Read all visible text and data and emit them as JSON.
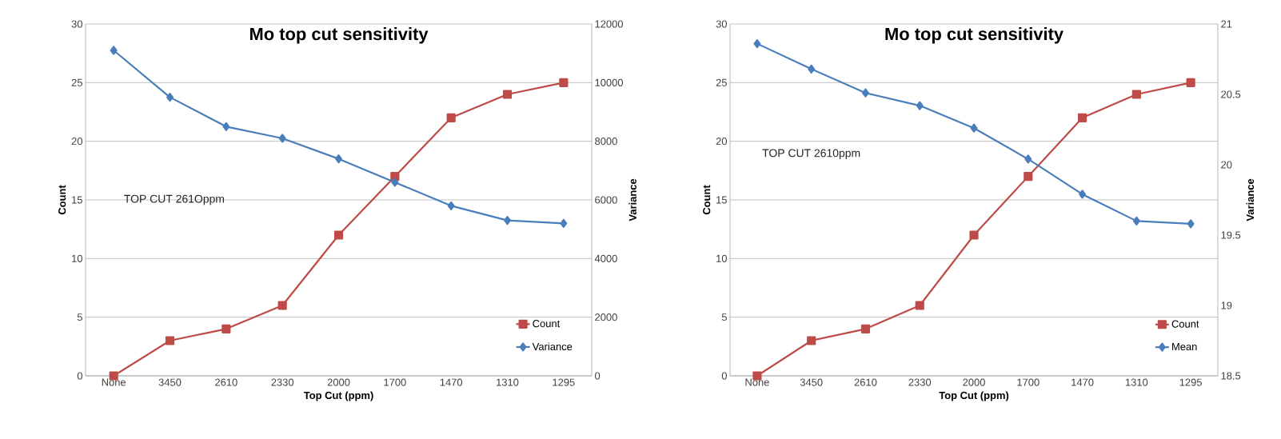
{
  "chart_data": [
    {
      "type": "line",
      "title": "Mo top cut sensitivity",
      "xlabel": "Top Cut (ppm)",
      "ylabel": "Count",
      "y2label": "Variance",
      "categories": [
        "None",
        "3450",
        "2610",
        "2330",
        "2000",
        "1700",
        "1470",
        "1310",
        "1295"
      ],
      "series": [
        {
          "name": "Count",
          "color": "#be4b48",
          "marker": "square",
          "values": [
            0,
            3,
            4,
            6,
            12,
            17,
            22,
            24,
            25
          ]
        },
        {
          "name": "Variance",
          "color": "#4a7ebb",
          "marker": "diamond",
          "axis": "y2",
          "values": [
            11100,
            9500,
            8500,
            8100,
            7400,
            6600,
            5800,
            5300,
            5200
          ]
        }
      ],
      "ylim": [
        0,
        30
      ],
      "yticks": [
        0,
        5,
        10,
        15,
        20,
        25,
        30
      ],
      "y2lim": [
        0,
        12000
      ],
      "y2ticks": [
        0,
        2000,
        4000,
        6000,
        8000,
        10000,
        12000
      ],
      "grid": "y",
      "legend": "bottom right",
      "annotations": [
        "TOP CUT 261Oppm"
      ]
    },
    {
      "type": "line",
      "title": "Mo top cut sensitivity",
      "xlabel": "Top Cut (ppm)",
      "ylabel": "Count",
      "y2label": "Variance",
      "categories": [
        "None",
        "3450",
        "2610",
        "2330",
        "2000",
        "1700",
        "1470",
        "1310",
        "1295"
      ],
      "series": [
        {
          "name": "Count",
          "color": "#be4b48",
          "marker": "square",
          "values": [
            0,
            3,
            4,
            6,
            12,
            17,
            22,
            24,
            25
          ]
        },
        {
          "name": "Mean",
          "color": "#4a7ebb",
          "marker": "diamond",
          "axis": "y2",
          "values": [
            20.86,
            20.68,
            20.51,
            20.42,
            20.26,
            20.04,
            19.79,
            19.6,
            19.58
          ]
        }
      ],
      "ylim": [
        0,
        30
      ],
      "yticks": [
        0,
        5,
        10,
        15,
        20,
        25,
        30
      ],
      "y2lim": [
        18.5,
        21
      ],
      "y2ticks": [
        18.5,
        19,
        19.5,
        20,
        20.5,
        21
      ],
      "grid": "y",
      "legend": "bottom right",
      "annotations": [
        "TOP CUT 2610ppm"
      ]
    }
  ]
}
